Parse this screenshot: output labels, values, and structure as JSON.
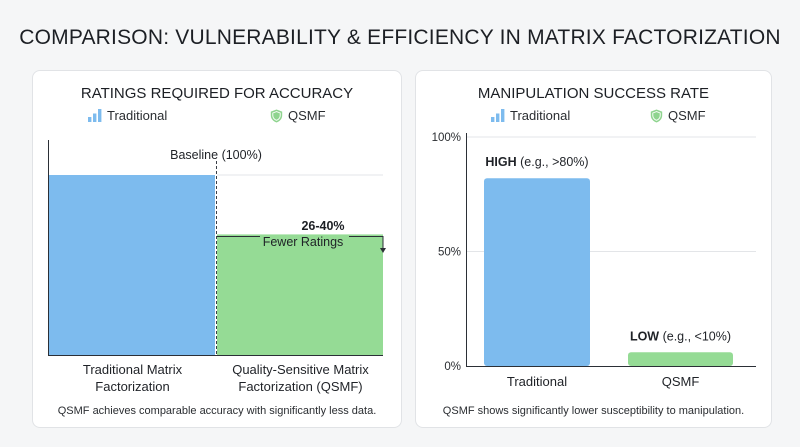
{
  "title": "COMPARISON: VULNERABILITY & EFFICIENCY IN MATRIX FACTORIZATION",
  "colors": {
    "traditional": "#7dbbee",
    "qsmf": "#95db95",
    "shield": "#8fd48f",
    "axis": "#2b2f36"
  },
  "legend": {
    "traditional": {
      "label": "Traditional",
      "icon": "bar-chart-icon"
    },
    "qsmf": {
      "label": "QSMF",
      "icon": "shield-icon"
    }
  },
  "chart_data": [
    {
      "type": "bar",
      "title": "RATINGS REQUIRED FOR ACCURACY",
      "categories": [
        "Traditional Matrix Factorization",
        "Quality-Sensitive Matrix Factorization (QSMF)"
      ],
      "tick_labels": [
        [
          "Traditional Matrix",
          "Factorization"
        ],
        [
          "Quality-Sensitive Matrix",
          "Factorization (QSMF)"
        ]
      ],
      "values": [
        100,
        67
      ],
      "ylim": [
        0,
        115
      ],
      "annotations": {
        "baseline": "Baseline (100%)",
        "reduction_value": "26-40%",
        "reduction_text": "Fewer Ratings"
      },
      "caption": "QSMF achieves comparable accuracy with significantly less data."
    },
    {
      "type": "bar",
      "title": "MANIPULATION SUCCESS RATE",
      "categories": [
        "Traditional",
        "QSMF"
      ],
      "values": [
        82,
        6
      ],
      "ylim": [
        0,
        100
      ],
      "yticks": [
        "0%",
        "50%",
        "100%"
      ],
      "data_labels": [
        {
          "strong": "HIGH",
          "rest": " (e.g., >80%)"
        },
        {
          "strong": "LOW",
          "rest": " (e.g., <10%)"
        }
      ],
      "caption": "QSMF shows significantly lower susceptibility to manipulation."
    }
  ]
}
